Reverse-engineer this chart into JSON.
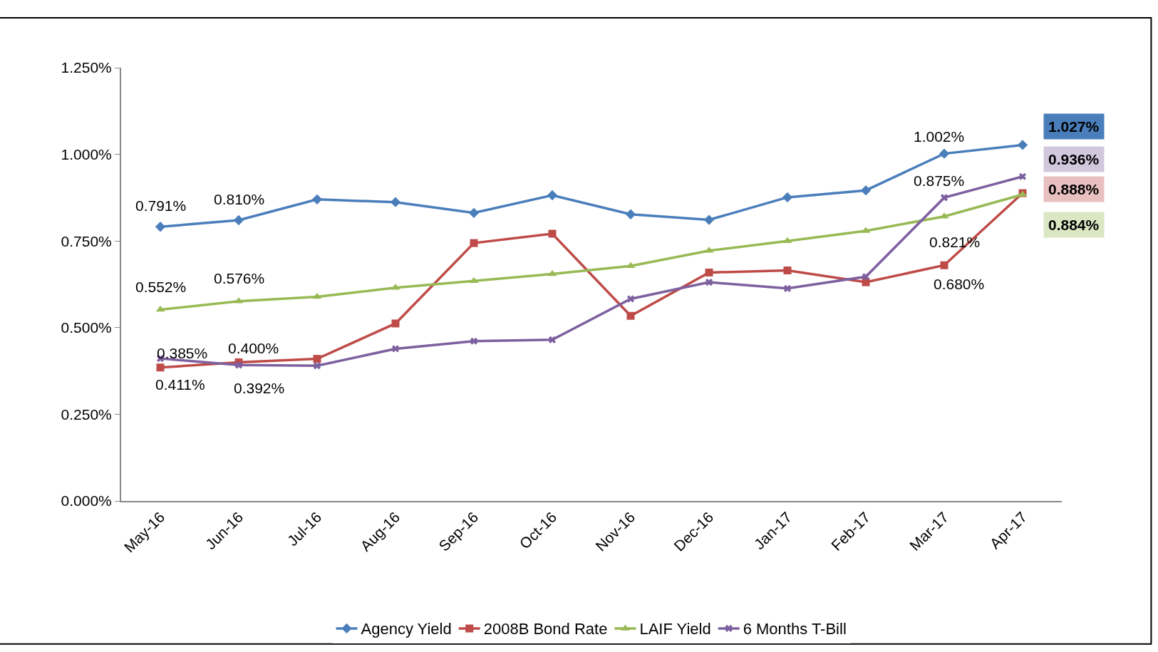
{
  "chart_data": {
    "type": "line",
    "categories": [
      "May-16",
      "Jun-16",
      "Jul-16",
      "Aug-16",
      "Sep-16",
      "Oct-16",
      "Nov-16",
      "Dec-16",
      "Jan-17",
      "Feb-17",
      "Mar-17",
      "Apr-17"
    ],
    "ylim": [
      0,
      1.25
    ],
    "yticks": [
      {
        "value": 0,
        "label": "0.000%"
      },
      {
        "value": 0.25,
        "label": "0.250%"
      },
      {
        "value": 0.5,
        "label": "0.500%"
      },
      {
        "value": 0.75,
        "label": "0.750%"
      },
      {
        "value": 1.0,
        "label": "1.000%"
      },
      {
        "value": 1.25,
        "label": "1.250%"
      }
    ],
    "legend": "bottom",
    "series": [
      {
        "name": "Agency Yield",
        "color": "#4a7ebb",
        "marker": "diamond",
        "values": [
          0.791,
          0.81,
          0.87,
          0.862,
          0.831,
          0.882,
          0.827,
          0.811,
          0.876,
          0.896,
          1.002,
          1.027
        ],
        "value_labels": [
          "0.791%",
          "0.810%",
          null,
          null,
          null,
          null,
          null,
          null,
          null,
          null,
          "1.002%",
          "1.027%"
        ]
      },
      {
        "name": "2008B Bond Rate",
        "color": "#be4b48",
        "marker": "square",
        "values": [
          0.385,
          0.4,
          0.41,
          0.512,
          0.744,
          0.771,
          0.534,
          0.659,
          0.665,
          0.631,
          0.68,
          0.888
        ],
        "value_labels": [
          "0.385%",
          "0.400%",
          null,
          null,
          null,
          null,
          null,
          null,
          null,
          null,
          "0.680%",
          "0.888%"
        ]
      },
      {
        "name": "LAIF Yield",
        "color": "#98b954",
        "marker": "triangle",
        "values": [
          0.552,
          0.576,
          0.589,
          0.615,
          0.635,
          0.655,
          0.678,
          0.722,
          0.75,
          0.779,
          0.821,
          0.884
        ],
        "value_labels": [
          "0.552%",
          "0.576%",
          null,
          null,
          null,
          null,
          null,
          null,
          null,
          null,
          "0.821%",
          "0.884%"
        ]
      },
      {
        "name": "6 Months T-Bill",
        "color": "#7d60a0",
        "marker": "cross",
        "values": [
          0.411,
          0.392,
          0.39,
          0.439,
          0.461,
          0.465,
          0.583,
          0.631,
          0.613,
          0.647,
          0.875,
          0.936
        ],
        "value_labels": [
          "0.411%",
          "0.392%",
          null,
          null,
          null,
          null,
          null,
          null,
          null,
          null,
          "0.875%",
          "0.936%"
        ]
      }
    ]
  }
}
